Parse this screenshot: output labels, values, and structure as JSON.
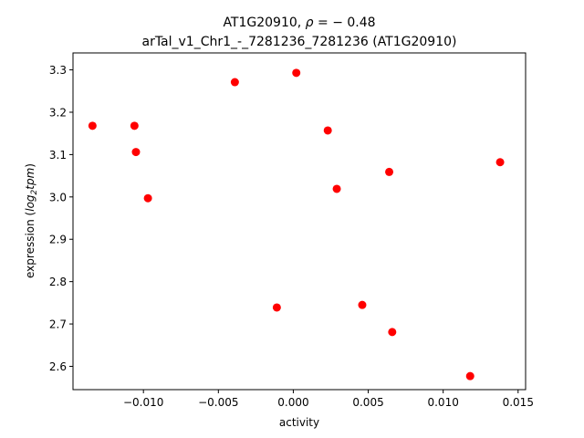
{
  "chart_data": {
    "type": "scatter",
    "title_line1_prefix": "AT1G20910, ",
    "title_rho_symbol": "ρ",
    "title_rho_value": " = − 0.48",
    "title_line2": "arTal_v1_Chr1_-_7281236_7281236 (AT1G20910)",
    "xlabel": "activity",
    "ylabel_prefix": "expression (",
    "ylabel_log": "log",
    "ylabel_sub": "2",
    "ylabel_tpm": "tpm",
    "ylabel_suffix": ")",
    "xlim": [
      -0.0147,
      0.0155
    ],
    "ylim": [
      2.545,
      3.34
    ],
    "xticks": [
      {
        "value": -0.01,
        "label": "−0.010"
      },
      {
        "value": -0.005,
        "label": "−0.005"
      },
      {
        "value": 0.0,
        "label": "0.000"
      },
      {
        "value": 0.005,
        "label": "0.005"
      },
      {
        "value": 0.01,
        "label": "0.010"
      },
      {
        "value": 0.015,
        "label": "0.015"
      }
    ],
    "yticks": [
      {
        "value": 2.6,
        "label": "2.6"
      },
      {
        "value": 2.7,
        "label": "2.7"
      },
      {
        "value": 2.8,
        "label": "2.8"
      },
      {
        "value": 2.9,
        "label": "2.9"
      },
      {
        "value": 3.0,
        "label": "3.0"
      },
      {
        "value": 3.1,
        "label": "3.1"
      },
      {
        "value": 3.2,
        "label": "3.2"
      },
      {
        "value": 3.3,
        "label": "3.3"
      }
    ],
    "marker_color": "#ff0000",
    "grid": false,
    "points": [
      {
        "x": -0.0134,
        "y": 3.168
      },
      {
        "x": -0.0106,
        "y": 3.168
      },
      {
        "x": -0.0105,
        "y": 3.106
      },
      {
        "x": -0.0097,
        "y": 2.997
      },
      {
        "x": -0.0039,
        "y": 3.271
      },
      {
        "x": -0.0011,
        "y": 2.739
      },
      {
        "x": 0.0002,
        "y": 3.293
      },
      {
        "x": 0.0023,
        "y": 3.157
      },
      {
        "x": 0.0029,
        "y": 3.019
      },
      {
        "x": 0.0046,
        "y": 2.745
      },
      {
        "x": 0.0064,
        "y": 3.059
      },
      {
        "x": 0.0066,
        "y": 2.681
      },
      {
        "x": 0.0118,
        "y": 2.577
      },
      {
        "x": 0.0138,
        "y": 3.082
      }
    ]
  }
}
